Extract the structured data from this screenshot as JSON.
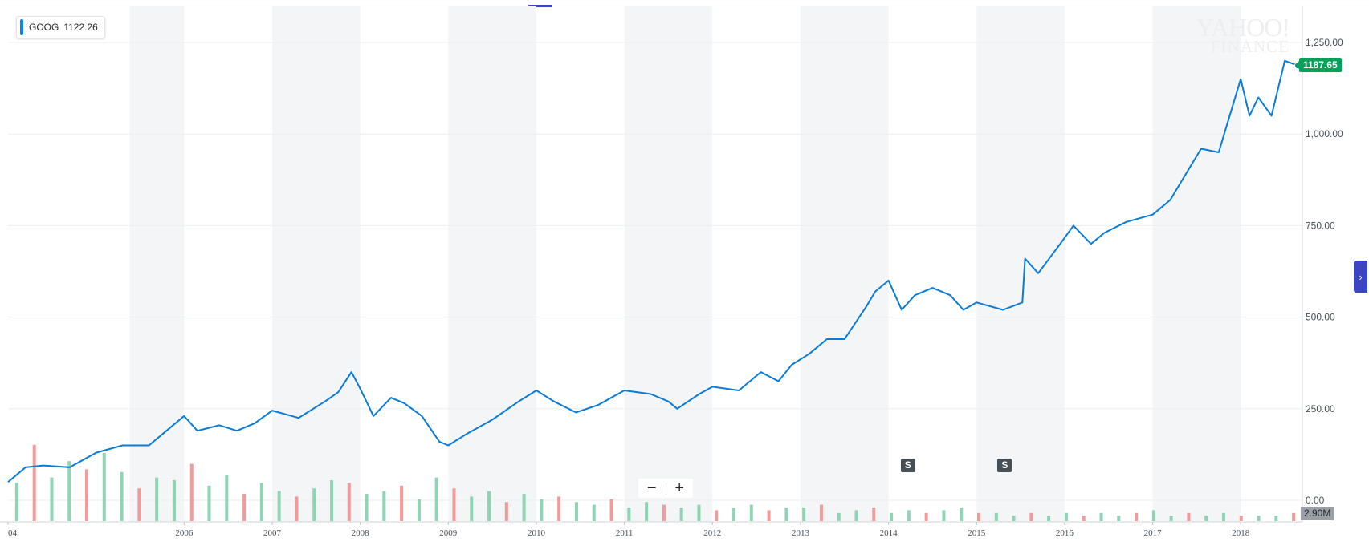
{
  "chart_data": {
    "type": "line",
    "ticker": "GOOG",
    "legend_value": "1122.26",
    "last_price_label": "1187.65",
    "volume_label": "2.90M",
    "y_ticks": [
      "1,250.00",
      "1,000.00",
      "750.00",
      "500.00",
      "250.00",
      "0.00"
    ],
    "y_tick_values": [
      1250,
      1000,
      750,
      500,
      250,
      0
    ],
    "ylim": [
      0,
      1250
    ],
    "xlim": [
      2004.0,
      2018.7
    ],
    "x_tick_labels": [
      {
        "label": "04",
        "year": 2004
      },
      {
        "label": "2006",
        "year": 2006
      },
      {
        "label": "2007",
        "year": 2007
      },
      {
        "label": "2008",
        "year": 2008
      },
      {
        "label": "2009",
        "year": 2009
      },
      {
        "label": "2010",
        "year": 2010
      },
      {
        "label": "2011",
        "year": 2011
      },
      {
        "label": "2012",
        "year": 2012
      },
      {
        "label": "2013",
        "year": 2013
      },
      {
        "label": "2014",
        "year": 2014
      },
      {
        "label": "2015",
        "year": 2015
      },
      {
        "label": "2016",
        "year": 2016
      },
      {
        "label": "2017",
        "year": 2017
      },
      {
        "label": "2018",
        "year": 2018
      }
    ],
    "series": [
      {
        "color": "#0a7bd8",
        "x": [
          2004.0,
          2004.2,
          2004.4,
          2004.7,
          2005.0,
          2005.3,
          2005.6,
          2005.8,
          2006.0,
          2006.15,
          2006.4,
          2006.6,
          2006.8,
          2007.0,
          2007.3,
          2007.6,
          2007.75,
          2007.9,
          2008.0,
          2008.15,
          2008.35,
          2008.5,
          2008.7,
          2008.9,
          2009.0,
          2009.2,
          2009.5,
          2009.8,
          2010.0,
          2010.2,
          2010.45,
          2010.7,
          2011.0,
          2011.3,
          2011.5,
          2011.6,
          2011.85,
          2012.0,
          2012.3,
          2012.55,
          2012.75,
          2012.9,
          2013.1,
          2013.3,
          2013.5,
          2013.75,
          2013.85,
          2014.0,
          2014.15,
          2014.3,
          2014.5,
          2014.7,
          2014.85,
          2015.0,
          2015.3,
          2015.52,
          2015.55,
          2015.7,
          2015.95,
          2016.1,
          2016.3,
          2016.45,
          2016.7,
          2017.0,
          2017.2,
          2017.4,
          2017.55,
          2017.75,
          2018.0,
          2018.1,
          2018.2,
          2018.35,
          2018.5,
          2018.65
        ],
        "y": [
          50,
          90,
          95,
          90,
          130,
          150,
          150,
          190,
          230,
          190,
          205,
          190,
          210,
          245,
          225,
          270,
          295,
          350,
          305,
          230,
          280,
          265,
          230,
          160,
          150,
          180,
          220,
          270,
          300,
          270,
          240,
          260,
          300,
          290,
          270,
          250,
          290,
          310,
          300,
          350,
          325,
          370,
          400,
          440,
          440,
          530,
          570,
          600,
          520,
          560,
          580,
          560,
          520,
          540,
          520,
          540,
          660,
          620,
          700,
          750,
          700,
          730,
          760,
          780,
          820,
          900,
          960,
          950,
          1150,
          1050,
          1100,
          1050,
          1200,
          1187
        ]
      }
    ],
    "volume_bars_millions": [
      14,
      28,
      16,
      22,
      19,
      25,
      18,
      12,
      16,
      15,
      21,
      13,
      17,
      10,
      14,
      11,
      9,
      12,
      15,
      14,
      10,
      11,
      13,
      8,
      16,
      12,
      9,
      11,
      7,
      10,
      8,
      9,
      7,
      6,
      8,
      5,
      7,
      6,
      5,
      6,
      4,
      5,
      6,
      4,
      5,
      5,
      6,
      3,
      4,
      5,
      3,
      4,
      3,
      4,
      5,
      3,
      3,
      2,
      3,
      2,
      3,
      2,
      3,
      2,
      3,
      4,
      2,
      3,
      2,
      3,
      2,
      2,
      2,
      3
    ],
    "split_markers": [
      {
        "label": "S",
        "year": 2014.22
      },
      {
        "label": "S",
        "year": 2015.32
      }
    ]
  },
  "zoom_out_label": "−",
  "zoom_in_label": "+",
  "brand_line1": "YAHOO!",
  "brand_line2": "FINANCE",
  "side_button_icon": "›"
}
